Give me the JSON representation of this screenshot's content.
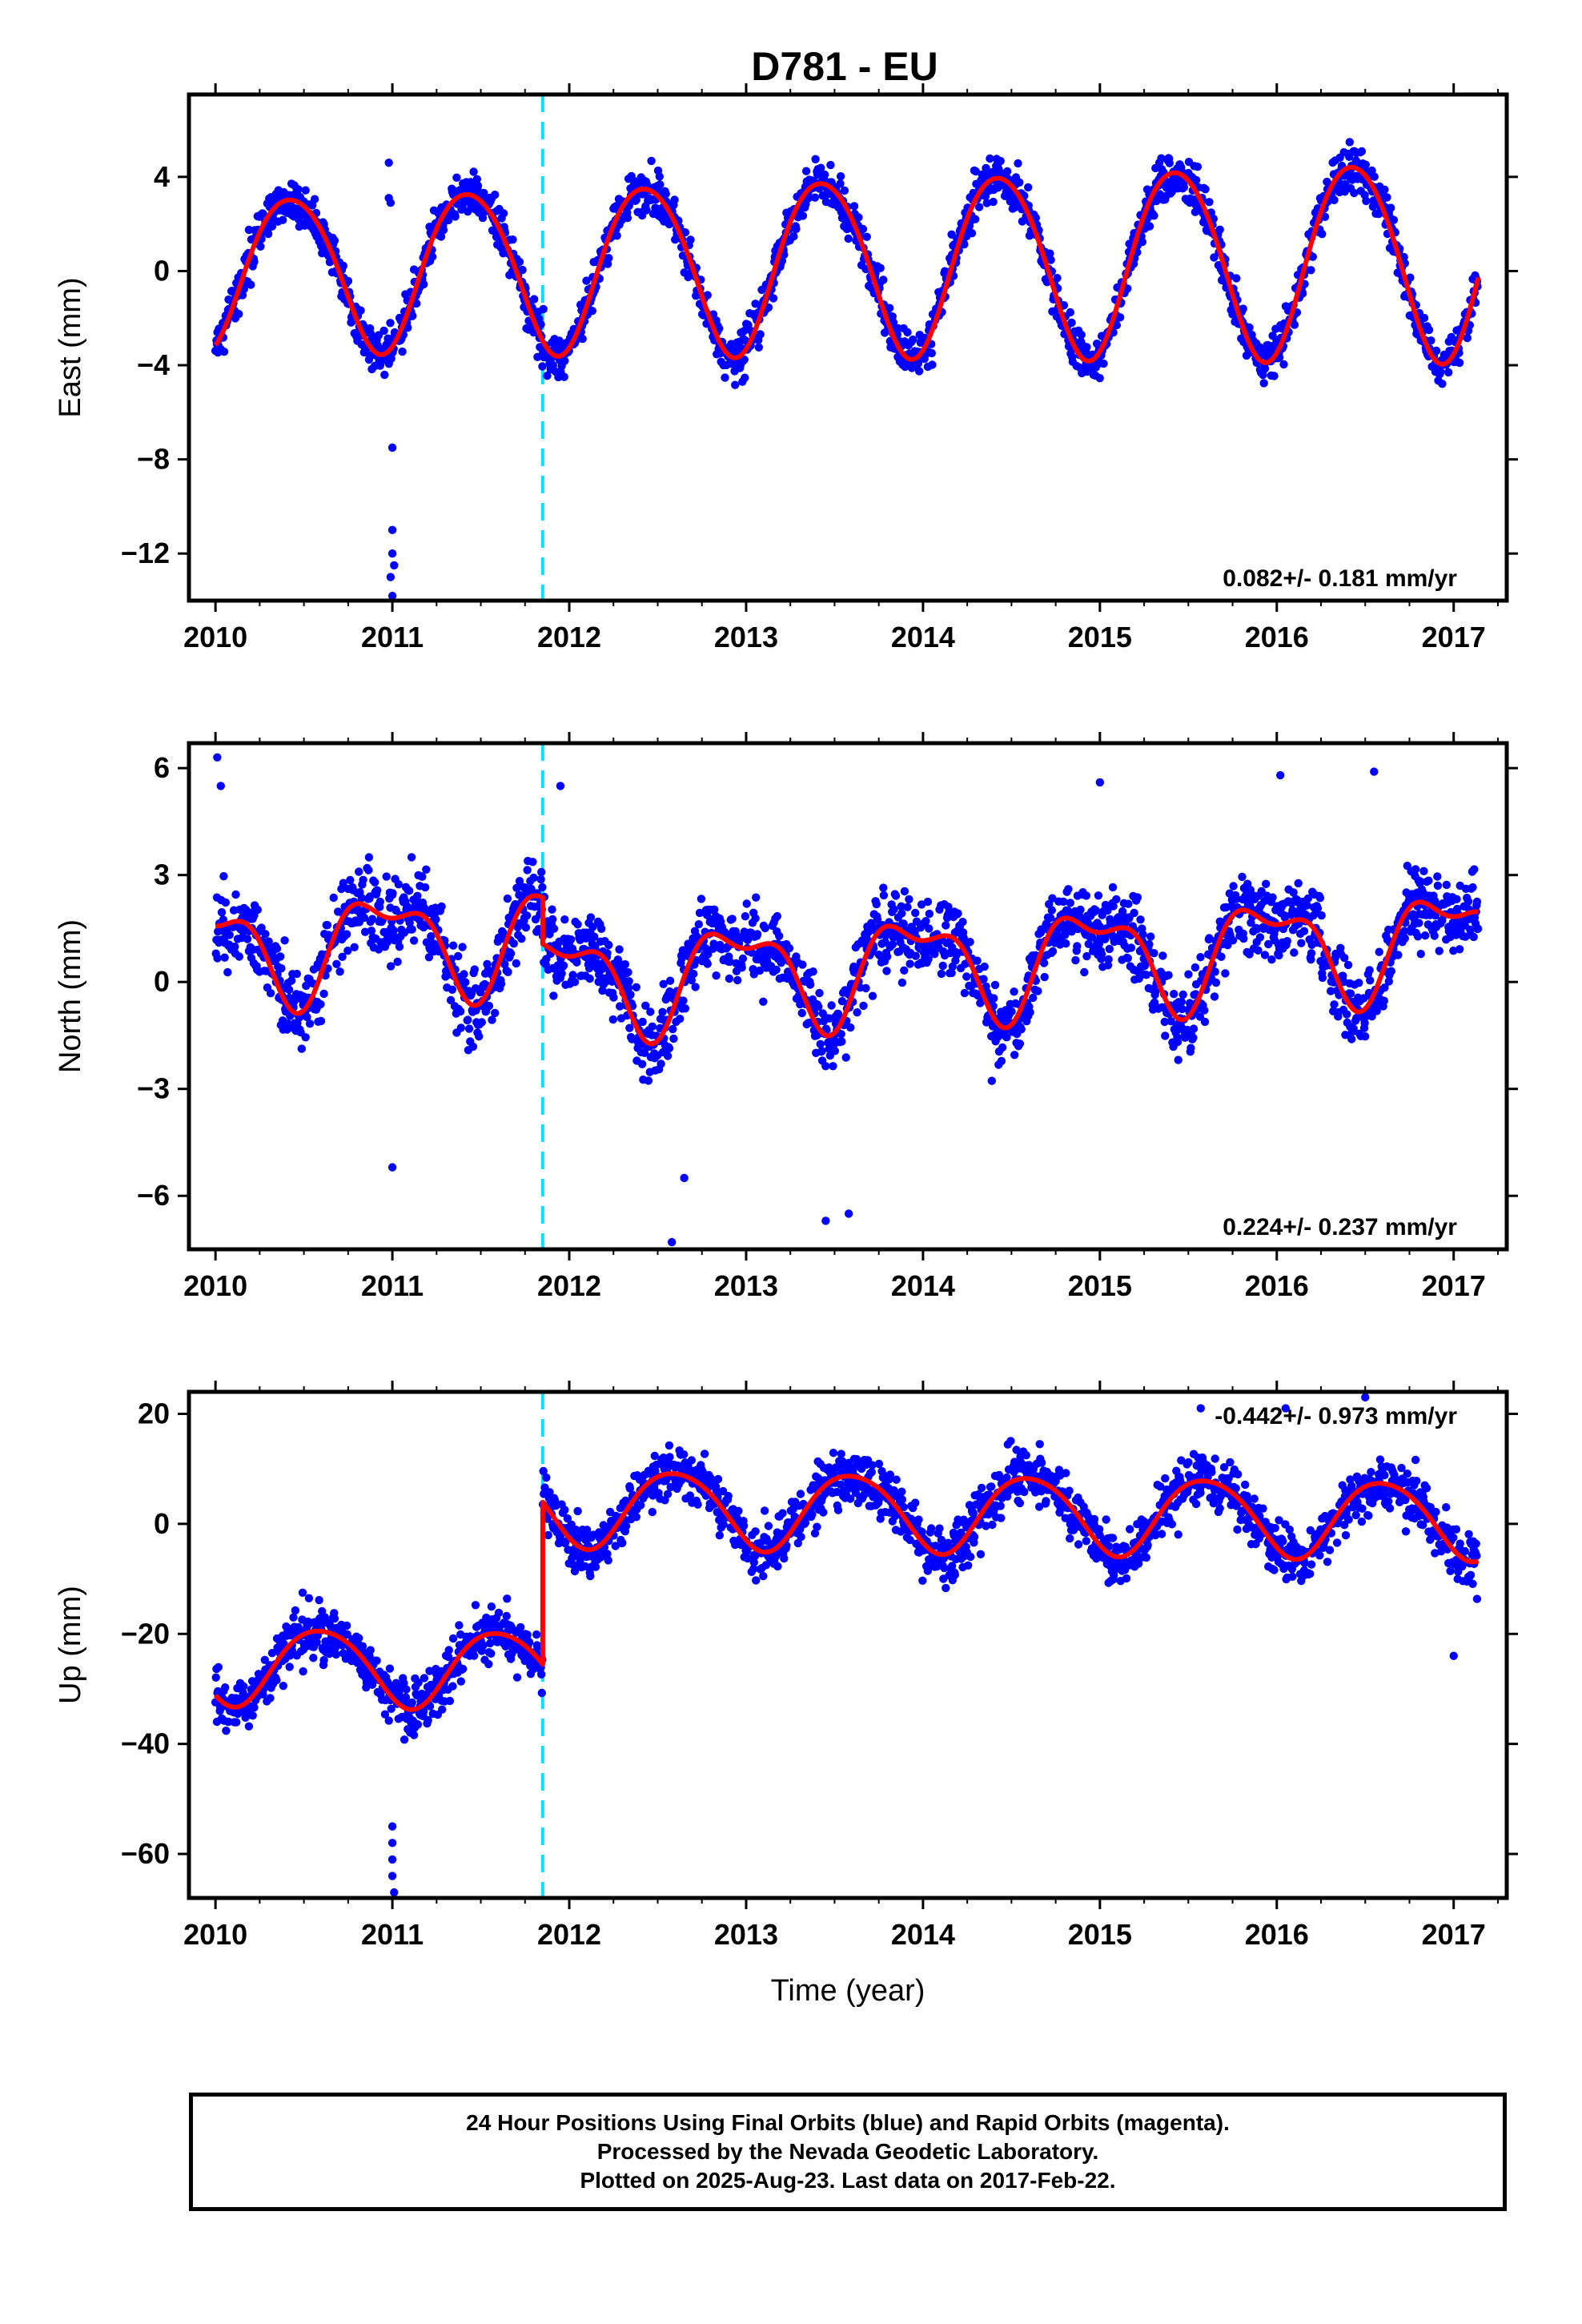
{
  "title": "D781 - EU",
  "chart_data": [
    {
      "type": "scatter",
      "name": "east",
      "ylabel": "East (mm)",
      "xlim": [
        2009.85,
        2017.3
      ],
      "ylim": [
        -14,
        7.5
      ],
      "yticks": [
        -12,
        -8,
        -4,
        0,
        4
      ],
      "yticklabels": [
        "−12",
        "−8",
        "−4",
        "0",
        "4"
      ],
      "xticks": [
        2010,
        2011,
        2012,
        2013,
        2014,
        2015,
        2016,
        2017
      ],
      "xticklabels": [
        "2010",
        "2011",
        "2012",
        "2013",
        "2014",
        "2015",
        "2016",
        "2017"
      ],
      "annotation": "0.082+/- 0.181 mm/yr",
      "annotation_position": "bottom-right",
      "break_year": 2011.85,
      "model": {
        "offset_before": 0.0,
        "offset_after": 0.0,
        "trend": 0.082,
        "annual": 3.2,
        "annual_growth": 0.15,
        "phase": 0.18,
        "semiannual": 0.3,
        "jitter": 0.9
      },
      "outliers": [
        [
          2010.98,
          4.6
        ],
        [
          2010.98,
          3.1
        ],
        [
          2010.99,
          2.9
        ],
        [
          2011.0,
          -7.5
        ],
        [
          2011.0,
          -11.0
        ],
        [
          2011.0,
          -12.0
        ],
        [
          2011.01,
          -12.5
        ],
        [
          2010.99,
          -13.0
        ],
        [
          2011.0,
          -13.8
        ]
      ],
      "series": [
        {
          "name": "",
          "color": "#0000ff"
        },
        {
          "name": "",
          "color": "#ff0000"
        }
      ]
    },
    {
      "type": "scatter",
      "name": "north",
      "ylabel": "North (mm)",
      "xlim": [
        2009.85,
        2017.3
      ],
      "ylim": [
        -7.5,
        6.7
      ],
      "yticks": [
        -6,
        -3,
        0,
        3,
        6
      ],
      "yticklabels": [
        "−6",
        "−3",
        "0",
        "3",
        "6"
      ],
      "xticks": [
        2010,
        2011,
        2012,
        2013,
        2014,
        2015,
        2016,
        2017
      ],
      "xticklabels": [
        "2010",
        "2011",
        "2012",
        "2013",
        "2014",
        "2015",
        "2016",
        "2017"
      ],
      "annotation": "0.224+/- 0.237 mm/yr",
      "annotation_position": "bottom-right",
      "break_year": 2011.85,
      "model": {
        "offset_before": 0.9,
        "offset_after": -0.4,
        "trend": 0.224,
        "annual": 1.3,
        "annual_growth": 0.0,
        "phase": 0.7,
        "semiannual": 0.6,
        "jitter": 1.0
      },
      "outliers": [
        [
          2010.01,
          6.3
        ],
        [
          2010.03,
          5.5
        ],
        [
          2011.95,
          5.5
        ],
        [
          2012.58,
          -7.3
        ],
        [
          2013.45,
          -6.7
        ],
        [
          2013.58,
          -6.5
        ],
        [
          2016.55,
          5.9
        ],
        [
          2015.0,
          5.6
        ],
        [
          2016.02,
          5.8
        ],
        [
          2011.0,
          -5.2
        ],
        [
          2012.65,
          -5.5
        ]
      ],
      "series": [
        {
          "name": "",
          "color": "#0000ff"
        },
        {
          "name": "",
          "color": "#ff0000"
        }
      ]
    },
    {
      "type": "scatter",
      "name": "up",
      "ylabel": "Up (mm)",
      "xlabel": "Time (year)",
      "xlim": [
        2009.85,
        2017.3
      ],
      "ylim": [
        -68,
        24
      ],
      "yticks": [
        -60,
        -40,
        -20,
        0,
        20
      ],
      "yticklabels": [
        "−60",
        "−40",
        "−20",
        "0",
        "20"
      ],
      "xticks": [
        2010,
        2011,
        2012,
        2013,
        2014,
        2015,
        2016,
        2017
      ],
      "xticklabels": [
        "2010",
        "2011",
        "2012",
        "2013",
        "2014",
        "2015",
        "2016",
        "2017"
      ],
      "annotation": "-0.442+/- 0.973 mm/yr",
      "annotation_position": "top-right",
      "break_year": 2011.85,
      "model": {
        "offset_before": -25.5,
        "offset_after": 4.0,
        "trend": -0.442,
        "annual": 7.0,
        "annual_growth": 0.0,
        "phase": 0.35,
        "semiannual": 0.8,
        "jitter": 4.5
      },
      "outliers": [
        [
          2011.0,
          -55
        ],
        [
          2011.0,
          -58
        ],
        [
          2011.0,
          -61
        ],
        [
          2011.0,
          -64
        ],
        [
          2011.01,
          -67
        ],
        [
          2016.5,
          23
        ],
        [
          2015.57,
          21
        ],
        [
          2016.05,
          21
        ],
        [
          2017.0,
          -24
        ]
      ],
      "series": [
        {
          "name": "",
          "color": "#0000ff"
        },
        {
          "name": "",
          "color": "#ff0000"
        }
      ]
    }
  ],
  "caption": {
    "line1": "24 Hour Positions Using Final Orbits (blue) and Rapid Orbits (magenta).",
    "line2": "Processed by the Nevada Geodetic Laboratory.",
    "line3": "Plotted on 2025-Aug-23. Last data on 2017-Feb-22."
  },
  "colors": {
    "points": "#0000ff",
    "model": "#ff0000",
    "break_line": "#00e5ff",
    "frame": "#000000"
  }
}
